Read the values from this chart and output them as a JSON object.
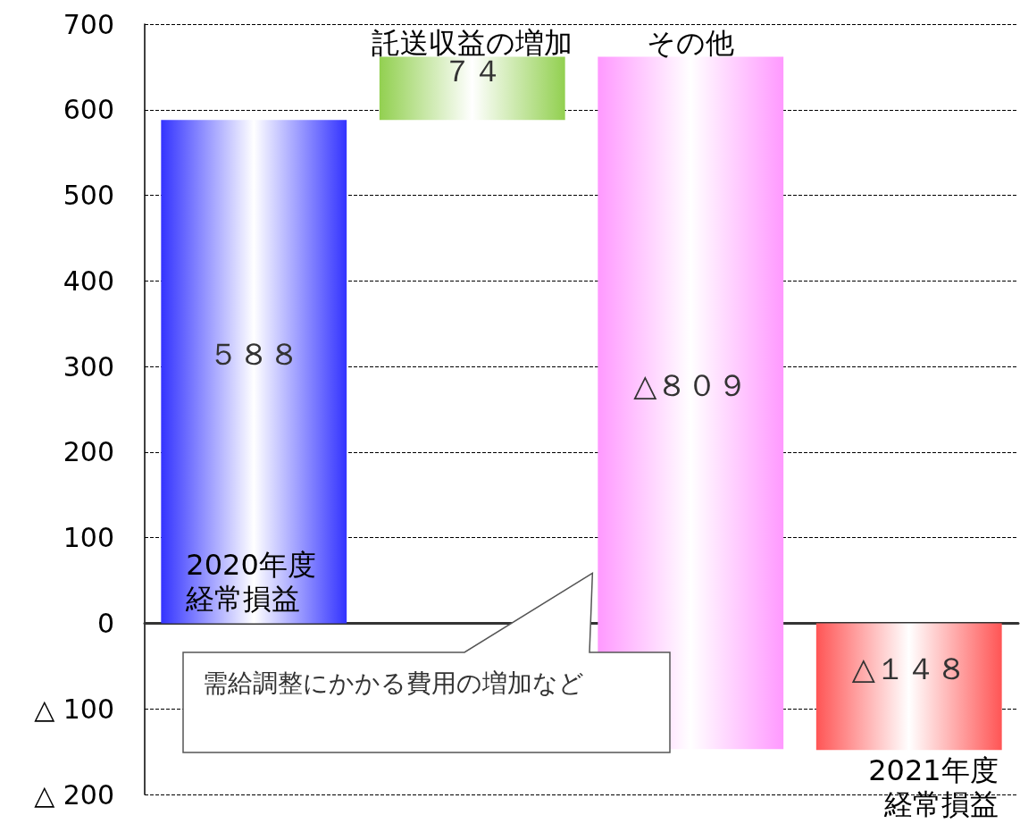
{
  "chart_data": {
    "type": "bar",
    "categories": [
      "2020年度経常損益",
      "託送収益の増加",
      "その他",
      "2021年度経常損益"
    ],
    "values": [
      588,
      74,
      -809,
      -148
    ],
    "base": [
      0,
      588,
      662,
      0
    ],
    "colors": [
      "#3333ff",
      "#92d050",
      "#ff99ff",
      "#ff5555"
    ],
    "value_labels": [
      "５８８",
      "７４",
      "△８０９",
      "△１４８"
    ],
    "ylim": [
      -200,
      700
    ],
    "yticks": [
      {
        "value": -200,
        "label": "△ 200"
      },
      {
        "value": -100,
        "label": "△ 100"
      },
      0,
      100,
      200,
      300,
      400,
      500,
      600,
      700
    ],
    "grid": "y",
    "tick_labels": "y",
    "annotations": [
      "需給調整にかかる費用の増加など"
    ]
  }
}
